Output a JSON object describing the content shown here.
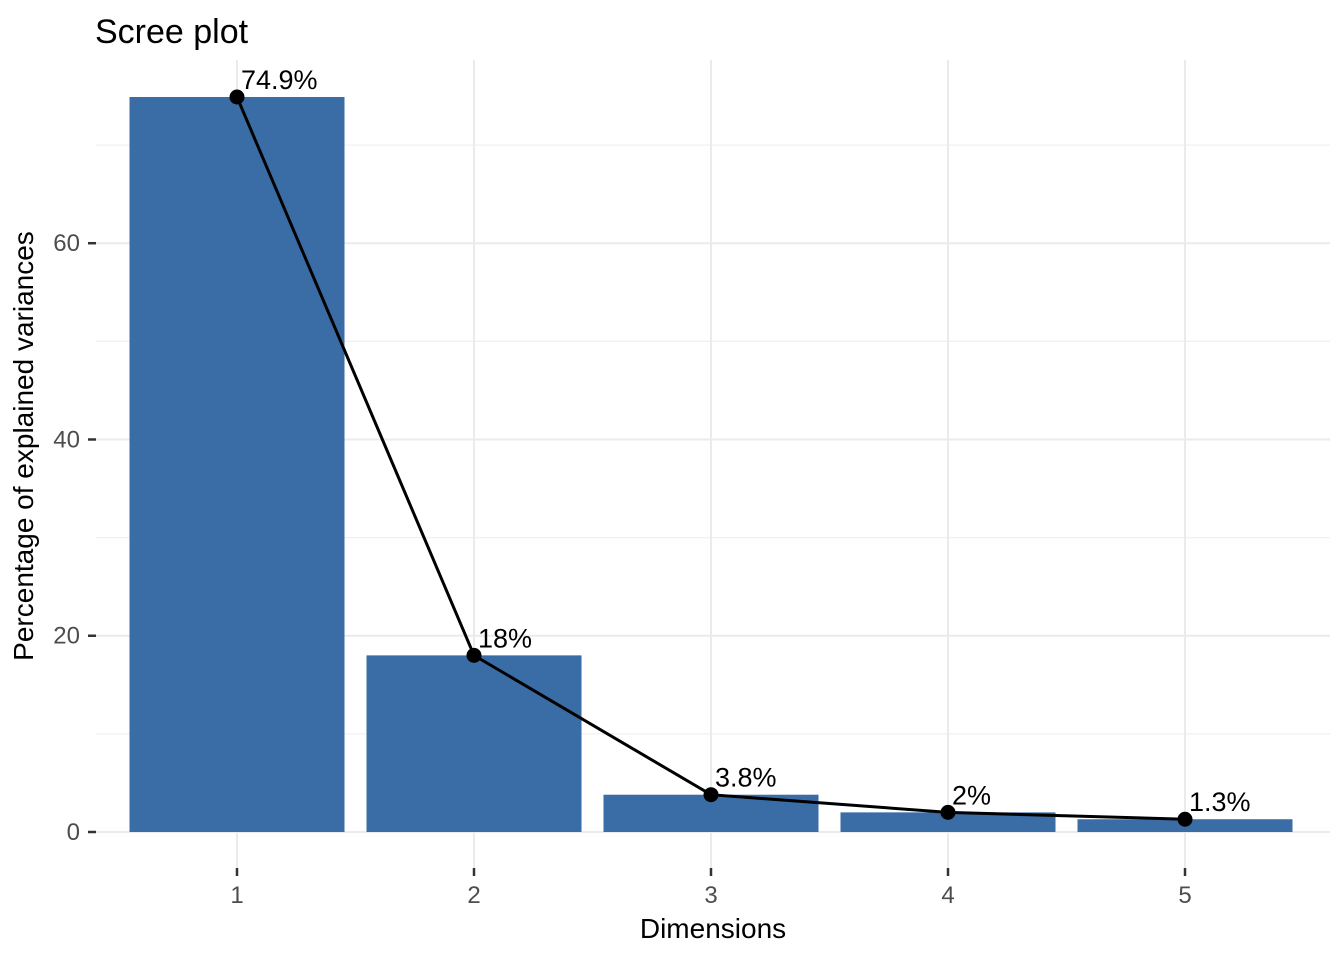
{
  "chart_data": {
    "type": "bar",
    "title": "Scree plot",
    "xlabel": "Dimensions",
    "ylabel": "Percentage of explained variances",
    "categories": [
      "1",
      "2",
      "3",
      "4",
      "5"
    ],
    "values": [
      74.9,
      18,
      3.8,
      2,
      1.3
    ],
    "point_labels": [
      "74.9%",
      "18%",
      "3.8%",
      "2%",
      "1.3%"
    ],
    "y_ticks": [
      0,
      20,
      40,
      60
    ],
    "y_minor_ticks": [
      10,
      30,
      50,
      70
    ],
    "ylim": [
      -3.7,
      78.6
    ],
    "grid": true,
    "legend": "none",
    "overlay": "line-with-points",
    "colors": {
      "bar_fill": "#3A6CA5",
      "line": "#000000",
      "point": "#000000",
      "grid_major": "#EBEBEB",
      "grid_minor": "#F0F0F0",
      "tick_mark": "#333333",
      "tick_text": "#4D4D4D",
      "title_text": "#000000",
      "axis_title_text": "#000000",
      "background": "#FFFFFF"
    }
  }
}
